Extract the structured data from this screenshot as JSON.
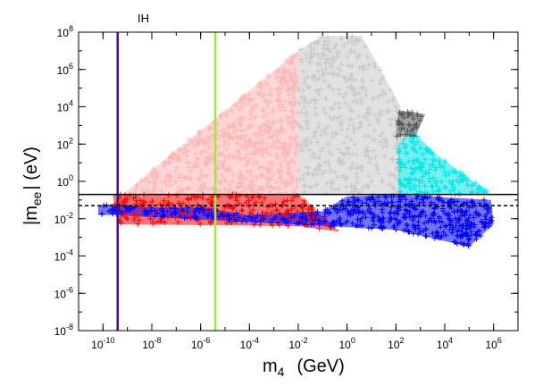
{
  "chart_data": {
    "type": "scatter",
    "title": "",
    "xlabel": "m",
    "xlabel_sub": "4",
    "xlabel_unit": "(GeV)",
    "ylabel": "|m",
    "ylabel_sub": "ee",
    "ylabel_unit": "|  (eV)",
    "xscale": "log",
    "yscale": "log",
    "xlim": [
      1e-11,
      10000000.0
    ],
    "ylim": [
      1e-08,
      100000000.0
    ],
    "x_ticks": [
      {
        "exp": -10,
        "label": "10",
        "sup": "-10"
      },
      {
        "exp": -8,
        "label": "10",
        "sup": "-8"
      },
      {
        "exp": -6,
        "label": "10",
        "sup": "-6"
      },
      {
        "exp": -4,
        "label": "10",
        "sup": "-4"
      },
      {
        "exp": -2,
        "label": "10",
        "sup": "-2"
      },
      {
        "exp": 0,
        "label": "10",
        "sup": "0"
      },
      {
        "exp": 2,
        "label": "10",
        "sup": "2"
      },
      {
        "exp": 4,
        "label": "10",
        "sup": "4"
      },
      {
        "exp": 6,
        "label": "10",
        "sup": "6"
      }
    ],
    "y_ticks": [
      {
        "exp": -8,
        "label": "10",
        "sup": "-8"
      },
      {
        "exp": -6,
        "label": "10",
        "sup": "-6"
      },
      {
        "exp": -4,
        "label": "10",
        "sup": "-4"
      },
      {
        "exp": -2,
        "label": "10",
        "sup": "-2"
      },
      {
        "exp": 0,
        "label": "10",
        "sup": "0"
      },
      {
        "exp": 2,
        "label": "10",
        "sup": "2"
      },
      {
        "exp": 4,
        "label": "10",
        "sup": "4"
      },
      {
        "exp": 6,
        "label": "10",
        "sup": "6"
      },
      {
        "exp": 8,
        "label": "10",
        "sup": "8"
      }
    ],
    "vertical_lines": [
      {
        "name": "IH",
        "x_exp": -9.4,
        "color": "#4b0f7a",
        "label": "IH"
      },
      {
        "name": "bound",
        "x_exp": -5.4,
        "color": "#a6e34a",
        "label": ""
      }
    ],
    "horizontal_lines": [
      {
        "name": "upper-bound",
        "y_exp": -0.7,
        "color": "#000000",
        "style": "solid"
      },
      {
        "name": "lower-bound",
        "y_exp": -1.3,
        "color": "#000000",
        "style": "dashed"
      }
    ],
    "regions": [
      {
        "name": "pink",
        "color": "#ffb6b6",
        "polygon": [
          [
            -9.2,
            -0.7
          ],
          [
            -2.0,
            7.0
          ],
          [
            -2.0,
            -0.7
          ]
        ]
      },
      {
        "name": "light-gray",
        "color": "#c8c8c8",
        "polygon": [
          [
            -2.0,
            -0.7
          ],
          [
            -2.0,
            7.0
          ],
          [
            -1.0,
            7.8
          ],
          [
            0.6,
            7.8
          ],
          [
            2.2,
            4.0
          ],
          [
            2.2,
            -0.7
          ]
        ]
      },
      {
        "name": "cyan",
        "color": "#00e5e5",
        "polygon": [
          [
            2.1,
            -0.7
          ],
          [
            2.1,
            2.0
          ],
          [
            2.6,
            2.8
          ],
          [
            3.6,
            1.5
          ],
          [
            5.9,
            -0.7
          ]
        ]
      },
      {
        "name": "dark-gray",
        "color": "#555555",
        "polygon": [
          [
            2.0,
            2.4
          ],
          [
            2.1,
            3.8
          ],
          [
            3.2,
            3.6
          ],
          [
            2.8,
            2.4
          ]
        ]
      },
      {
        "name": "red",
        "color": "#ff0000",
        "polygon": [
          [
            -9.6,
            -0.7
          ],
          [
            -2.0,
            -0.7
          ],
          [
            -0.3,
            -2.7
          ],
          [
            -2.0,
            -2.4
          ],
          [
            -9.4,
            -2.3
          ]
        ]
      },
      {
        "name": "blue",
        "color": "#0000ff",
        "polygon": [
          [
            -10.2,
            -1.3
          ],
          [
            -9.4,
            -1.2
          ],
          [
            -8.0,
            -1.4
          ],
          [
            -6.0,
            -1.4
          ],
          [
            -4.0,
            -1.8
          ],
          [
            -1.0,
            -1.6
          ],
          [
            0.0,
            -0.8
          ],
          [
            2.0,
            -0.7
          ],
          [
            5.9,
            -1.0
          ],
          [
            6.0,
            -2.3
          ],
          [
            5.0,
            -3.5
          ],
          [
            2.0,
            -2.6
          ],
          [
            -0.8,
            -2.4
          ],
          [
            -9.6,
            -1.8
          ],
          [
            -10.2,
            -1.8
          ]
        ]
      }
    ],
    "annotations": [
      {
        "text": "IH",
        "x_exp": -9.4,
        "y_exp": 8.0
      }
    ]
  }
}
